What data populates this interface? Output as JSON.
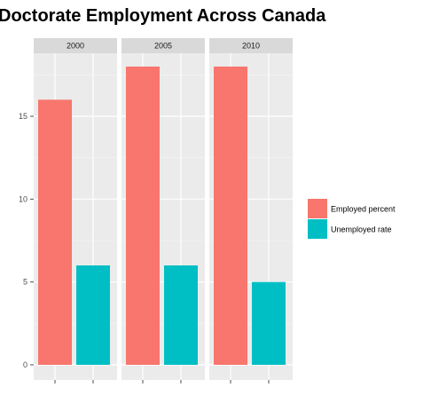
{
  "colors": {
    "employed": "#F8766D",
    "unemployed": "#00BFC4",
    "panel_bg": "#EBEBEB",
    "strip_bg": "#D9D9D9",
    "grid": "#FFFFFF"
  },
  "chart_data": {
    "type": "bar",
    "title": "Doctorate Employment Across Canada",
    "xlabel": "",
    "ylabel": "",
    "ylim": [
      0,
      19.3
    ],
    "yticks": [
      0,
      5,
      10,
      15
    ],
    "grid": true,
    "legend_position": "right",
    "facets": [
      "2000",
      "2005",
      "2010"
    ],
    "series": [
      {
        "name": "Employed percent",
        "color": "#F8766D",
        "values": [
          16,
          18,
          18
        ]
      },
      {
        "name": "Unemployed rate",
        "color": "#00BFC4",
        "values": [
          6,
          6,
          5
        ]
      }
    ]
  }
}
